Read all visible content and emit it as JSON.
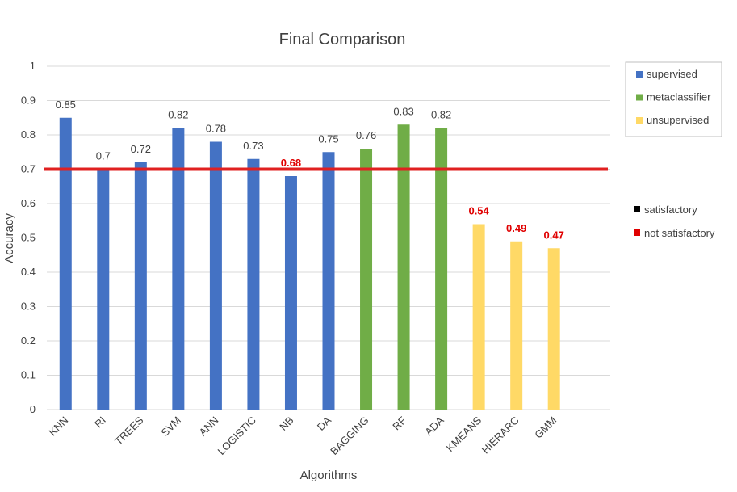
{
  "chart_data": {
    "type": "bar",
    "title": "Final Comparison",
    "xlabel": "Algorithms",
    "ylabel": "Accuracy",
    "ylim": [
      0,
      1
    ],
    "yticks": [
      "0",
      "0.1",
      "0.2",
      "0.3",
      "0.4",
      "0.5",
      "0.6",
      "0.7",
      "0.8",
      "0.9",
      "1"
    ],
    "grid": true,
    "threshold": 0.7,
    "categories": [
      "KNN",
      "RI",
      "TREES",
      "SVM",
      "ANN",
      "LOGISTIC",
      "NB",
      "DA",
      "BAGGING",
      "RF",
      "ADA",
      "KMEANS",
      "HIERARC",
      "GMM"
    ],
    "values": [
      0.85,
      0.7,
      0.72,
      0.82,
      0.78,
      0.73,
      0.68,
      0.75,
      0.76,
      0.83,
      0.82,
      0.54,
      0.49,
      0.47
    ],
    "labels": [
      "0.85",
      "0.7",
      "0.72",
      "0.82",
      "0.78",
      "0.73",
      "0.68",
      "0.75",
      "0.76",
      "0.83",
      "0.82",
      "0.54",
      "0.49",
      "0.47"
    ],
    "groups": [
      "supervised",
      "supervised",
      "supervised",
      "supervised",
      "supervised",
      "supervised",
      "supervised",
      "supervised",
      "metaclassifier",
      "metaclassifier",
      "metaclassifier",
      "unsupervised",
      "unsupervised",
      "unsupervised"
    ],
    "label_status": [
      "satisfactory",
      "satisfactory",
      "satisfactory",
      "satisfactory",
      "satisfactory",
      "satisfactory",
      "not satisfactory",
      "satisfactory",
      "satisfactory",
      "satisfactory",
      "satisfactory",
      "not satisfactory",
      "not satisfactory",
      "not satisfactory"
    ],
    "legend": {
      "placement": "right",
      "series": [
        {
          "name": "supervised",
          "color": "#4472c4"
        },
        {
          "name": "metaclassifier",
          "color": "#70ad47"
        },
        {
          "name": "unsupervised",
          "color": "#ffd966"
        }
      ],
      "status": [
        {
          "name": "satisfactory",
          "color": "#000000"
        },
        {
          "name": "not satisfactory",
          "color": "#e00000"
        }
      ]
    },
    "colors": {
      "supervised": "#4472c4",
      "metaclassifier": "#70ad47",
      "unsupervised": "#ffd966",
      "threshold_line": "#e02020",
      "bad_label": "#e00000"
    }
  }
}
